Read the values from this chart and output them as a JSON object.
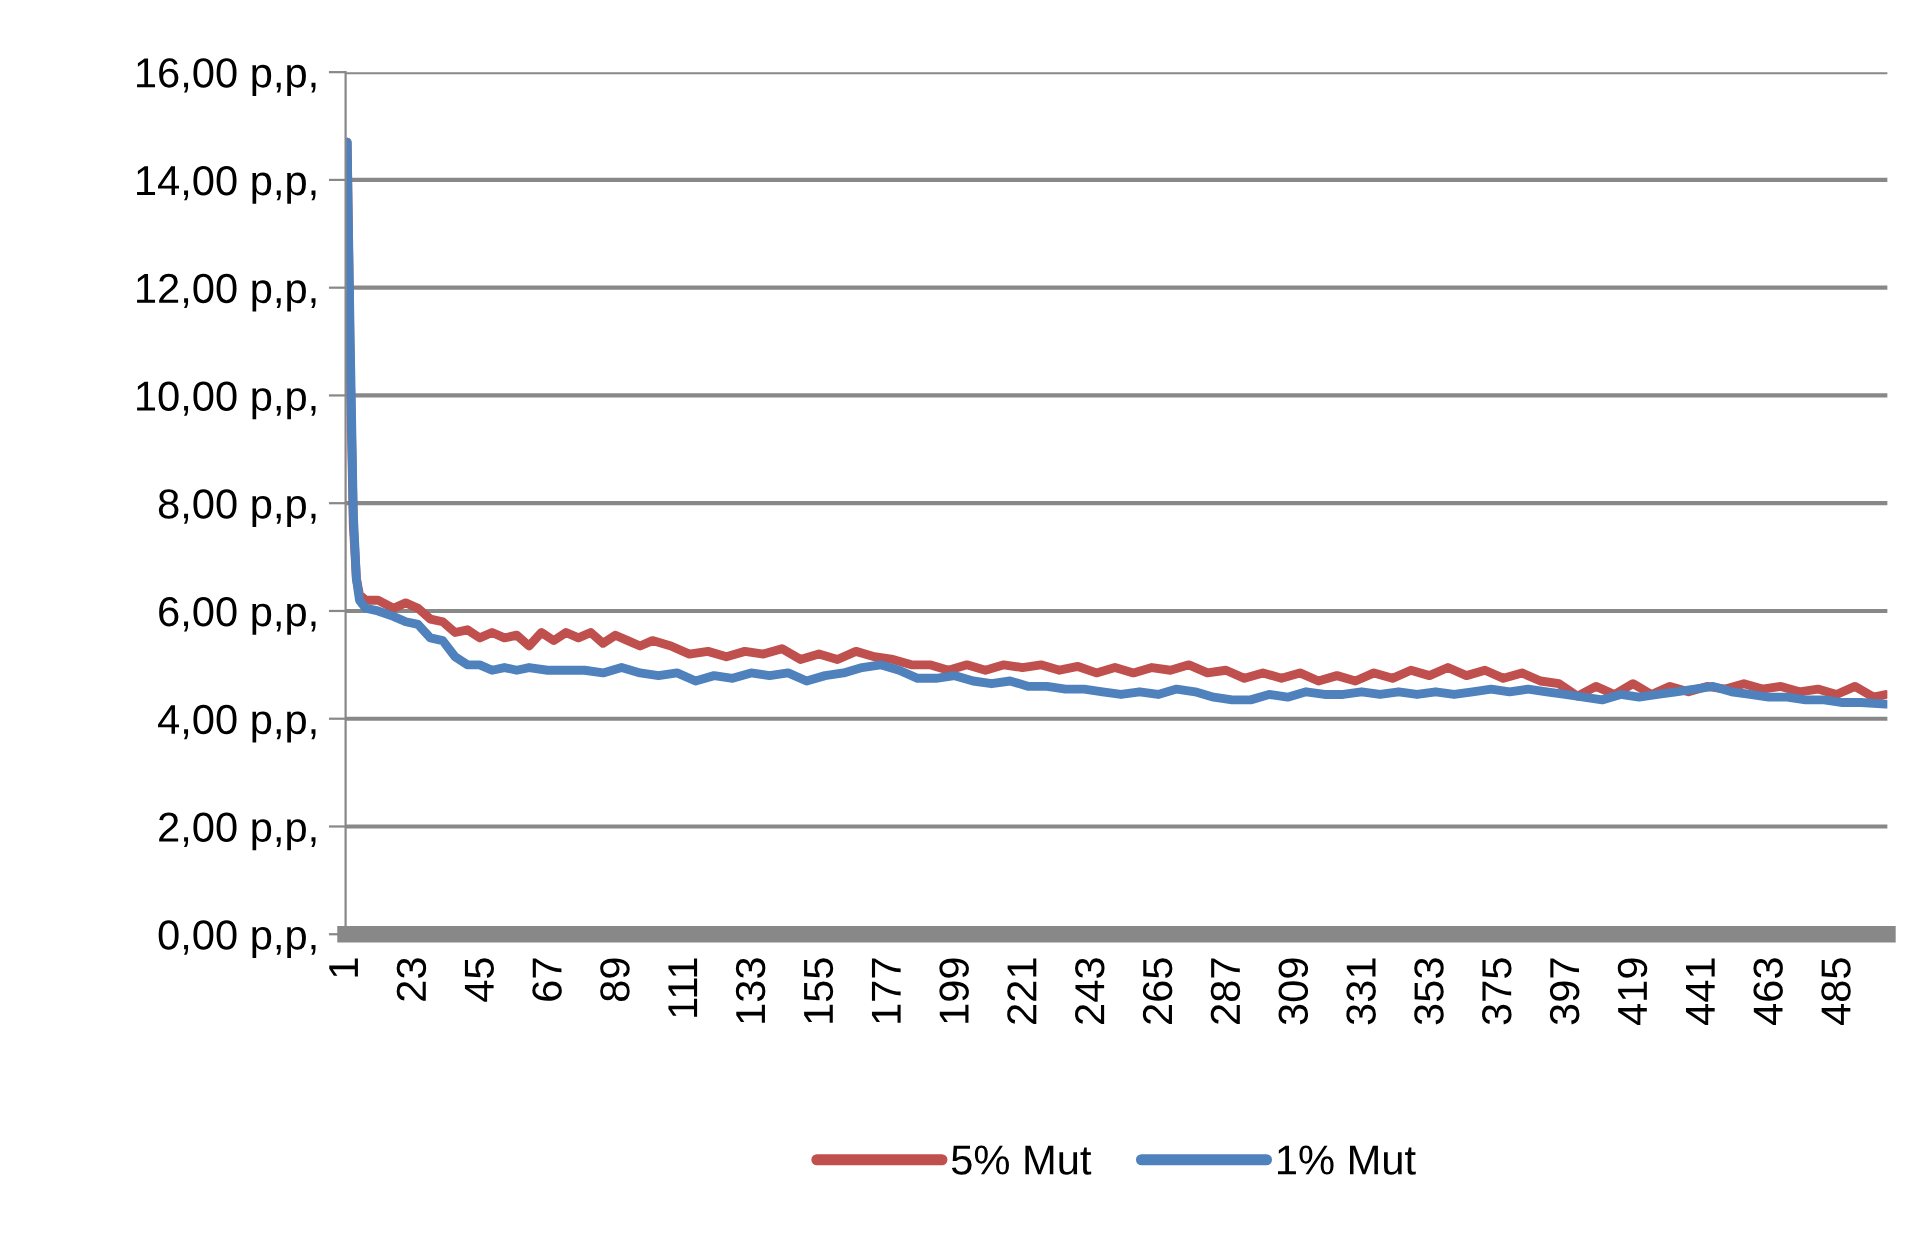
{
  "chart_data": {
    "type": "line",
    "xlim": [
      0.5,
      500.5
    ],
    "xticks": [
      1,
      23,
      45,
      67,
      89,
      111,
      133,
      155,
      177,
      199,
      221,
      243,
      265,
      287,
      309,
      331,
      353,
      375,
      397,
      419,
      441,
      463,
      485
    ],
    "ylim": [
      0,
      16
    ],
    "yticks": [
      {
        "value": 0,
        "label": "0,00 p,p,"
      },
      {
        "value": 2,
        "label": "2,00 p,p,"
      },
      {
        "value": 4,
        "label": "4,00 p,p,"
      },
      {
        "value": 6,
        "label": "6,00 p,p,"
      },
      {
        "value": 8,
        "label": "8,00 p,p,"
      },
      {
        "value": 10,
        "label": "10,00 p,p,"
      },
      {
        "value": 12,
        "label": "12,00 p,p,"
      },
      {
        "value": 14,
        "label": "14,00 p,p,"
      },
      {
        "value": 16,
        "label": "16,00 p,p,"
      }
    ],
    "grid": "y",
    "legend": "bottom",
    "series": [
      {
        "name": "5% Mut",
        "color": "#c0504d",
        "x": [
          1,
          2,
          3,
          4,
          5,
          7,
          11,
          16,
          20,
          24,
          28,
          32,
          36,
          40,
          44,
          48,
          52,
          56,
          60,
          64,
          68,
          72,
          76,
          80,
          84,
          88,
          92,
          96,
          100,
          106,
          112,
          118,
          124,
          130,
          136,
          142,
          148,
          154,
          160,
          166,
          172,
          178,
          184,
          190,
          196,
          202,
          208,
          214,
          220,
          226,
          232,
          238,
          244,
          250,
          256,
          262,
          268,
          274,
          280,
          286,
          292,
          298,
          304,
          310,
          316,
          322,
          328,
          334,
          340,
          346,
          352,
          358,
          364,
          370,
          376,
          382,
          388,
          394,
          400,
          406,
          412,
          418,
          424,
          430,
          436,
          442,
          448,
          454,
          460,
          466,
          472,
          478,
          484,
          490,
          496,
          500
        ],
        "values": [
          14.7,
          10.5,
          7.6,
          6.6,
          6.3,
          6.2,
          6.2,
          6.05,
          6.15,
          6.05,
          5.85,
          5.8,
          5.6,
          5.65,
          5.5,
          5.6,
          5.5,
          5.55,
          5.35,
          5.6,
          5.45,
          5.6,
          5.5,
          5.6,
          5.4,
          5.55,
          5.45,
          5.35,
          5.45,
          5.35,
          5.2,
          5.25,
          5.15,
          5.25,
          5.2,
          5.3,
          5.1,
          5.2,
          5.1,
          5.25,
          5.15,
          5.1,
          5.0,
          5.0,
          4.9,
          5.0,
          4.9,
          5.0,
          4.95,
          5.0,
          4.9,
          4.97,
          4.85,
          4.95,
          4.85,
          4.95,
          4.9,
          5.0,
          4.85,
          4.9,
          4.75,
          4.85,
          4.75,
          4.85,
          4.7,
          4.8,
          4.7,
          4.85,
          4.75,
          4.9,
          4.8,
          4.95,
          4.8,
          4.9,
          4.75,
          4.85,
          4.7,
          4.65,
          4.42,
          4.6,
          4.45,
          4.65,
          4.45,
          4.6,
          4.5,
          4.6,
          4.55,
          4.65,
          4.55,
          4.6,
          4.5,
          4.55,
          4.45,
          4.6,
          4.4,
          4.45
        ]
      },
      {
        "name": "1% Mut",
        "color": "#4f81bd",
        "x": [
          1,
          2,
          3,
          4,
          5,
          7,
          11,
          16,
          20,
          24,
          28,
          32,
          36,
          40,
          44,
          48,
          52,
          56,
          60,
          66,
          72,
          78,
          84,
          90,
          96,
          102,
          108,
          114,
          120,
          126,
          132,
          138,
          144,
          150,
          156,
          162,
          168,
          174,
          180,
          186,
          192,
          198,
          204,
          210,
          216,
          222,
          228,
          234,
          240,
          246,
          252,
          258,
          264,
          270,
          276,
          282,
          288,
          294,
          300,
          306,
          312,
          318,
          324,
          330,
          336,
          342,
          348,
          354,
          360,
          366,
          372,
          378,
          384,
          390,
          396,
          402,
          408,
          414,
          420,
          426,
          432,
          438,
          444,
          450,
          456,
          462,
          468,
          474,
          480,
          486,
          492,
          500
        ],
        "values": [
          14.7,
          11.0,
          7.8,
          6.6,
          6.2,
          6.05,
          6.0,
          5.9,
          5.8,
          5.75,
          5.5,
          5.45,
          5.15,
          5.0,
          5.0,
          4.9,
          4.95,
          4.9,
          4.95,
          4.9,
          4.9,
          4.9,
          4.85,
          4.95,
          4.85,
          4.8,
          4.85,
          4.7,
          4.8,
          4.75,
          4.85,
          4.8,
          4.85,
          4.7,
          4.8,
          4.85,
          4.95,
          5.0,
          4.9,
          4.75,
          4.75,
          4.8,
          4.7,
          4.65,
          4.7,
          4.6,
          4.6,
          4.55,
          4.55,
          4.5,
          4.45,
          4.5,
          4.45,
          4.55,
          4.5,
          4.4,
          4.35,
          4.35,
          4.45,
          4.4,
          4.5,
          4.45,
          4.45,
          4.5,
          4.45,
          4.5,
          4.45,
          4.5,
          4.45,
          4.5,
          4.55,
          4.5,
          4.55,
          4.5,
          4.45,
          4.4,
          4.35,
          4.45,
          4.4,
          4.45,
          4.5,
          4.55,
          4.6,
          4.5,
          4.45,
          4.4,
          4.4,
          4.35,
          4.35,
          4.3,
          4.3,
          4.27
        ]
      }
    ]
  }
}
